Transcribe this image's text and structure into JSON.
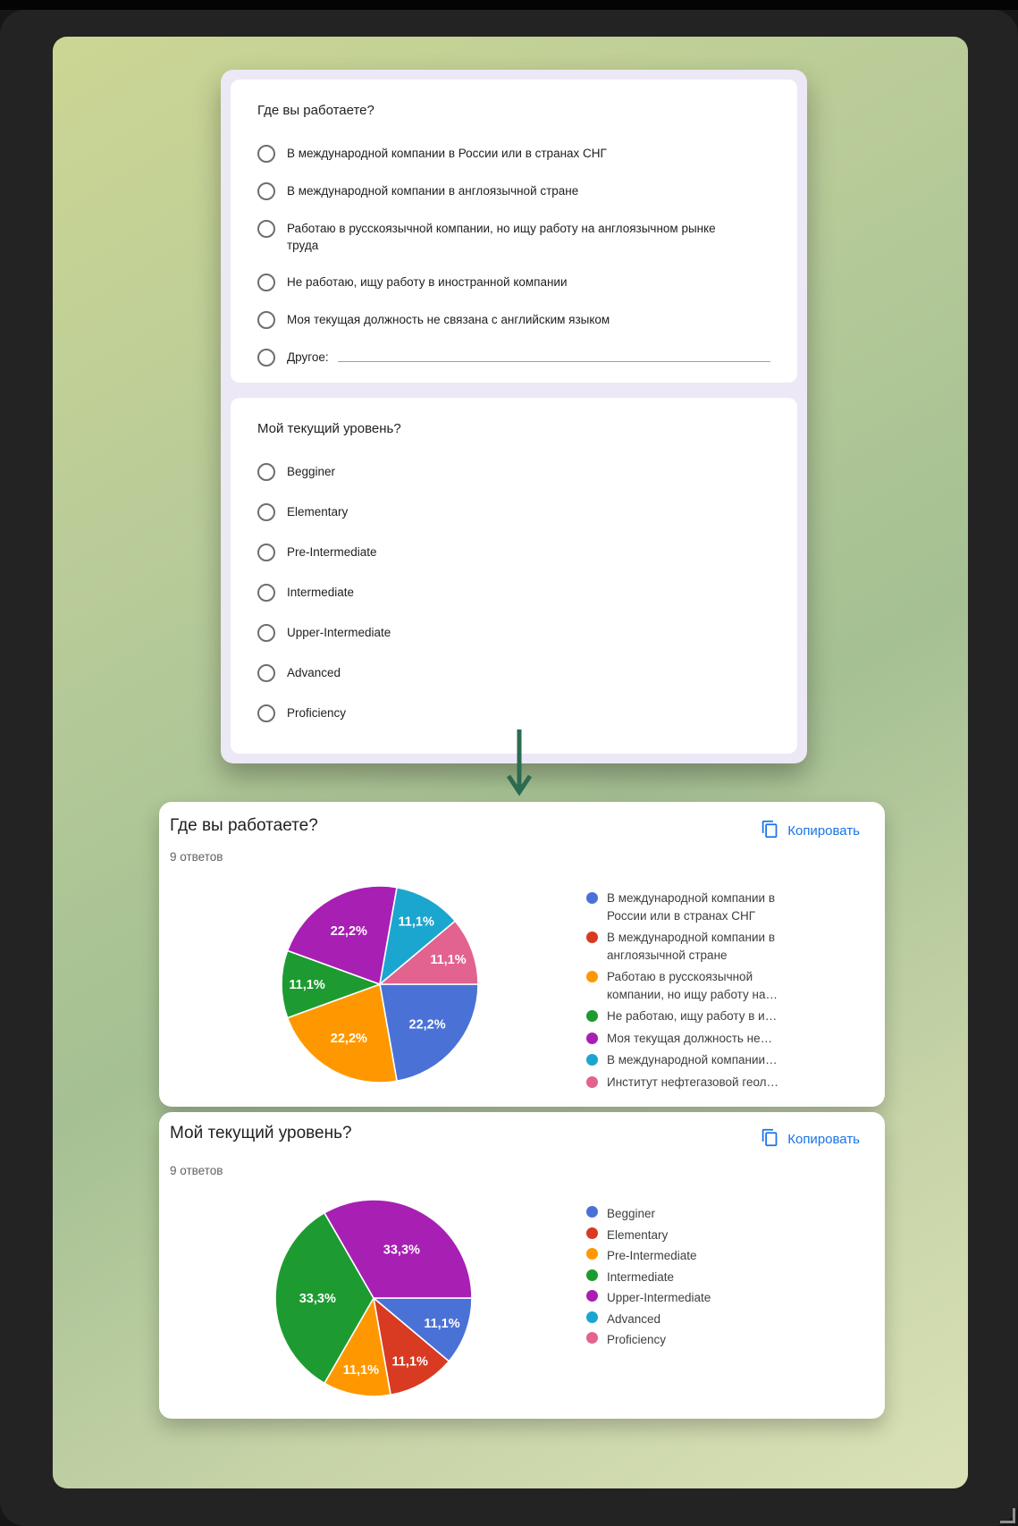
{
  "form_panel": {
    "questions": [
      {
        "title": "Где вы работаете?",
        "options": [
          "В международной компании в России или в странах СНГ",
          "В международной компании в англоязычной стране",
          "Работаю в русскоязычной компании, но ищу работу на англоязычном рынке труда",
          "Не работаю, ищу работу в иностранной компании",
          "Моя текущая должность не связана с английским языком"
        ],
        "other_option_label": "Другое:"
      },
      {
        "title": "Мой текущий уровень?",
        "options": [
          "Begginer",
          "Elementary",
          "Pre-Intermediate",
          "Intermediate",
          "Upper-Intermediate",
          "Advanced",
          "Proficiency"
        ]
      }
    ]
  },
  "results": [
    {
      "title": "Где вы работаете?",
      "responses_label": "9 ответов",
      "copy_label": "Копировать"
    },
    {
      "title": "Мой текущий уровень?",
      "responses_label": "9 ответов",
      "copy_label": "Копировать"
    }
  ],
  "chart_data": [
    {
      "type": "pie",
      "title": "Где вы работаете?",
      "responses_count": 9,
      "legend_position": "right",
      "start_angle": "3-oclock-clockwise",
      "slices": [
        {
          "label": "В международной компании в России или в странах СНГ",
          "legend_label": "В международной компании в России или в странах СНГ",
          "count": 2,
          "pct": 22.2,
          "pct_label": "22,2%",
          "color": "#4a72d6"
        },
        {
          "label": "В международной компании в англоязычной стране",
          "legend_label": "В международной компании в англоязычной стране",
          "count": 0,
          "pct": 0,
          "pct_label": "",
          "color": "#d83a22"
        },
        {
          "label": "Работаю в русскоязычной компании, но ищу работу на англоязычном рынке труда",
          "legend_label": "Работаю в русскоязычной компании, но ищу работу на…",
          "count": 2,
          "pct": 22.2,
          "pct_label": "22,2%",
          "color": "#ff9800"
        },
        {
          "label": "Не работаю, ищу работу в иностранной компании",
          "legend_label": "Не работаю, ищу работу в и…",
          "count": 1,
          "pct": 11.1,
          "pct_label": "11,1%",
          "color": "#1d9b31"
        },
        {
          "label": "Моя текущая должность не связана с английским языком",
          "legend_label": "Моя текущая должность не…",
          "count": 2,
          "pct": 22.2,
          "pct_label": "22,2%",
          "color": "#a81fb4"
        },
        {
          "label": "В международной компании…",
          "legend_label": "В международной компании…",
          "count": 1,
          "pct": 11.1,
          "pct_label": "11,1%",
          "color": "#1ba6cf"
        },
        {
          "label": "Институт нефтегазовой геол…",
          "legend_label": "Институт нефтегазовой геол…",
          "count": 1,
          "pct": 11.1,
          "pct_label": "11,1%",
          "color": "#e2638f"
        }
      ]
    },
    {
      "type": "pie",
      "title": "Мой текущий уровень?",
      "responses_count": 9,
      "legend_position": "right",
      "start_angle": "3-oclock-clockwise",
      "slices": [
        {
          "label": "Begginer",
          "legend_label": "Begginer",
          "count": 1,
          "pct": 11.1,
          "pct_label": "11,1%",
          "color": "#4a72d6"
        },
        {
          "label": "Elementary",
          "legend_label": "Elementary",
          "count": 1,
          "pct": 11.1,
          "pct_label": "11,1%",
          "color": "#d83a22"
        },
        {
          "label": "Pre-Intermediate",
          "legend_label": "Pre-Intermediate",
          "count": 1,
          "pct": 11.1,
          "pct_label": "11,1%",
          "color": "#ff9800"
        },
        {
          "label": "Intermediate",
          "legend_label": "Intermediate",
          "count": 3,
          "pct": 33.3,
          "pct_label": "33,3%",
          "color": "#1d9b31"
        },
        {
          "label": "Upper-Intermediate",
          "legend_label": "Upper-Intermediate",
          "count": 3,
          "pct": 33.3,
          "pct_label": "33,3%",
          "color": "#a81fb4"
        },
        {
          "label": "Advanced",
          "legend_label": "Advanced",
          "count": 0,
          "pct": 0,
          "pct_label": "",
          "color": "#1ba6cf"
        },
        {
          "label": "Proficiency",
          "legend_label": "Proficiency",
          "count": 0,
          "pct": 0,
          "pct_label": "",
          "color": "#e2638f"
        }
      ]
    }
  ],
  "arrow": {
    "color": "#2b6b4f"
  },
  "icons": {
    "copy": "copy-icon"
  }
}
